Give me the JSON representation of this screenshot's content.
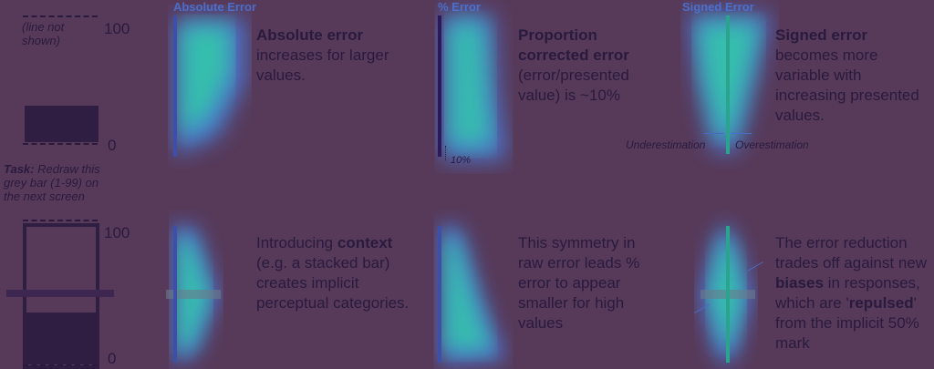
{
  "left_top": {
    "line_note": "(line not shown)",
    "tick_100": "100",
    "tick_0": "0",
    "task_label": "Task:",
    "task_text": "Redraw this grey bar (1-99) on the next screen"
  },
  "left_bottom": {
    "tick_100": "100",
    "tick_0": "0"
  },
  "panels": {
    "abs_title": "Absolute Error",
    "pct_title": "% Error",
    "signed_title": "Signed Error",
    "pct_tick": "10%",
    "under": "Underestimation",
    "over": "Overestimation"
  },
  "blurbs": {
    "top_abs_bold": "Absolute error",
    "top_abs_rest": "increases for larger values.",
    "top_pct_bold": "Proportion corrected error",
    "top_pct_rest": "(error/presented value) is ~10%",
    "top_signed_bold": "Signed error",
    "top_signed_rest": "becomes more variable with increasing presented values.",
    "bot_abs_pre": "Introducing",
    "bot_abs_bold": "context",
    "bot_abs_rest": "(e.g. a stacked bar) creates implicit perceptual categories.",
    "bot_pct": "This symmetry in raw error leads % error to appear smaller for high values",
    "bot_signed_pre": "The error reduction trades off against new",
    "bot_signed_bold1": "biases",
    "bot_signed_mid": "in responses, which are '",
    "bot_signed_bold2": "repulsed",
    "bot_signed_post": "' from the implicit 50% mark"
  },
  "colors": {
    "background": "#573a5a",
    "ink": "#2a1a3e",
    "axis_blue": "#4c6bc4",
    "heat_green": "#2ed6a0",
    "heat_blue": "#4a84e8"
  }
}
